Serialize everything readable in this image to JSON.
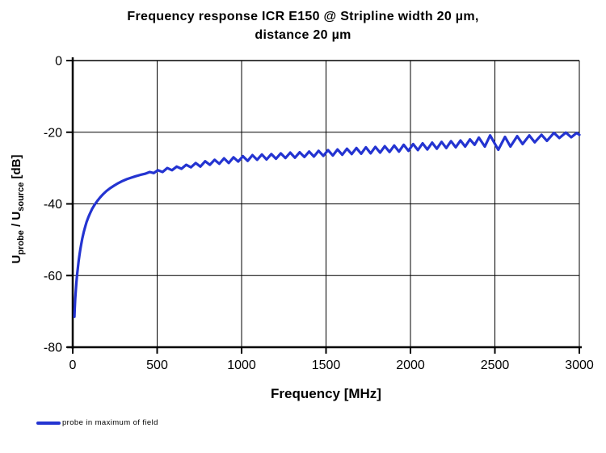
{
  "ui": {
    "title_line1": "Frequency response ICR E150 @ Stripline width 20 µm,",
    "title_line2": "distance 20 µm",
    "ylabel_parts": {
      "pre": "U",
      "sub1": "probe",
      "mid": " / U",
      "sub2": "source",
      "post": " [dB]"
    },
    "xlabel": "Frequency [MHz]",
    "legend_label": "probe in maximum of field"
  },
  "colors": {
    "line": "#2434d1",
    "axis": "#000000",
    "grid": "#000000",
    "background": "#ffffff"
  },
  "chart_data": {
    "type": "line",
    "title": "Frequency response ICR E150 @ Stripline width 20 µm, distance 20 µm",
    "xlabel": "Frequency [MHz]",
    "ylabel": "Uprobe / Usource [dB]",
    "xlim": [
      0,
      3000
    ],
    "ylim": [
      -80,
      0
    ],
    "x_ticks": [
      0,
      500,
      1000,
      1500,
      2000,
      2500,
      3000
    ],
    "y_ticks": [
      0,
      -20,
      -40,
      -60,
      -80
    ],
    "grid": true,
    "legend_position": "bottom-left",
    "series": [
      {
        "name": "probe in maximum of field",
        "color": "#2434d1",
        "points": [
          [
            10,
            -71.5
          ],
          [
            12,
            -69.2
          ],
          [
            15,
            -66.4
          ],
          [
            18,
            -64.2
          ],
          [
            22,
            -61.8
          ],
          [
            26,
            -59.8
          ],
          [
            30,
            -58.0
          ],
          [
            35,
            -56.0
          ],
          [
            40,
            -54.2
          ],
          [
            45,
            -52.7
          ],
          [
            50,
            -51.3
          ],
          [
            57,
            -49.6
          ],
          [
            65,
            -47.9
          ],
          [
            73,
            -46.5
          ],
          [
            82,
            -45.1
          ],
          [
            92,
            -43.8
          ],
          [
            102,
            -42.7
          ],
          [
            115,
            -41.4
          ],
          [
            130,
            -40.2
          ],
          [
            145,
            -39.2
          ],
          [
            162,
            -38.2
          ],
          [
            180,
            -37.3
          ],
          [
            200,
            -36.4
          ],
          [
            222,
            -35.6
          ],
          [
            245,
            -34.9
          ],
          [
            270,
            -34.2
          ],
          [
            295,
            -33.6
          ],
          [
            320,
            -33.1
          ],
          [
            345,
            -32.7
          ],
          [
            372,
            -32.3
          ],
          [
            400,
            -31.9
          ],
          [
            428,
            -31.6
          ],
          [
            456,
            -31.1
          ],
          [
            480,
            -31.4
          ],
          [
            504,
            -30.6
          ],
          [
            532,
            -31.1
          ],
          [
            560,
            -30.0
          ],
          [
            588,
            -30.6
          ],
          [
            616,
            -29.6
          ],
          [
            644,
            -30.2
          ],
          [
            672,
            -29.1
          ],
          [
            700,
            -29.8
          ],
          [
            728,
            -28.6
          ],
          [
            756,
            -29.6
          ],
          [
            784,
            -28.1
          ],
          [
            812,
            -29.1
          ],
          [
            840,
            -27.7
          ],
          [
            868,
            -28.8
          ],
          [
            896,
            -27.3
          ],
          [
            924,
            -28.6
          ],
          [
            952,
            -27.0
          ],
          [
            980,
            -28.2
          ],
          [
            1008,
            -26.7
          ],
          [
            1036,
            -28.0
          ],
          [
            1064,
            -26.4
          ],
          [
            1092,
            -27.7
          ],
          [
            1120,
            -26.2
          ],
          [
            1148,
            -27.6
          ],
          [
            1176,
            -26.1
          ],
          [
            1204,
            -27.4
          ],
          [
            1232,
            -25.9
          ],
          [
            1260,
            -27.2
          ],
          [
            1288,
            -25.7
          ],
          [
            1316,
            -27.1
          ],
          [
            1344,
            -25.6
          ],
          [
            1372,
            -26.9
          ],
          [
            1400,
            -25.4
          ],
          [
            1428,
            -26.8
          ],
          [
            1456,
            -25.2
          ],
          [
            1484,
            -26.6
          ],
          [
            1512,
            -25.0
          ],
          [
            1540,
            -26.5
          ],
          [
            1568,
            -24.8
          ],
          [
            1596,
            -26.3
          ],
          [
            1624,
            -24.6
          ],
          [
            1652,
            -26.1
          ],
          [
            1680,
            -24.4
          ],
          [
            1708,
            -26.0
          ],
          [
            1736,
            -24.2
          ],
          [
            1764,
            -25.9
          ],
          [
            1792,
            -24.1
          ],
          [
            1820,
            -25.7
          ],
          [
            1848,
            -23.9
          ],
          [
            1876,
            -25.5
          ],
          [
            1904,
            -23.7
          ],
          [
            1932,
            -25.4
          ],
          [
            1960,
            -23.5
          ],
          [
            1988,
            -25.2
          ],
          [
            2016,
            -23.3
          ],
          [
            2044,
            -25.0
          ],
          [
            2072,
            -23.1
          ],
          [
            2100,
            -24.8
          ],
          [
            2128,
            -22.9
          ],
          [
            2156,
            -24.6
          ],
          [
            2184,
            -22.7
          ],
          [
            2212,
            -24.4
          ],
          [
            2240,
            -22.5
          ],
          [
            2268,
            -24.2
          ],
          [
            2296,
            -22.3
          ],
          [
            2324,
            -24.0
          ],
          [
            2352,
            -22.0
          ],
          [
            2380,
            -23.5
          ],
          [
            2405,
            -21.5
          ],
          [
            2440,
            -24.0
          ],
          [
            2472,
            -20.9
          ],
          [
            2520,
            -24.9
          ],
          [
            2560,
            -21.3
          ],
          [
            2592,
            -24.0
          ],
          [
            2632,
            -21.1
          ],
          [
            2664,
            -23.3
          ],
          [
            2704,
            -20.9
          ],
          [
            2736,
            -22.8
          ],
          [
            2776,
            -20.7
          ],
          [
            2808,
            -22.4
          ],
          [
            2850,
            -20.2
          ],
          [
            2882,
            -21.6
          ],
          [
            2920,
            -20.1
          ],
          [
            2952,
            -21.4
          ],
          [
            2984,
            -20.2
          ],
          [
            3000,
            -20.7
          ]
        ]
      }
    ]
  }
}
